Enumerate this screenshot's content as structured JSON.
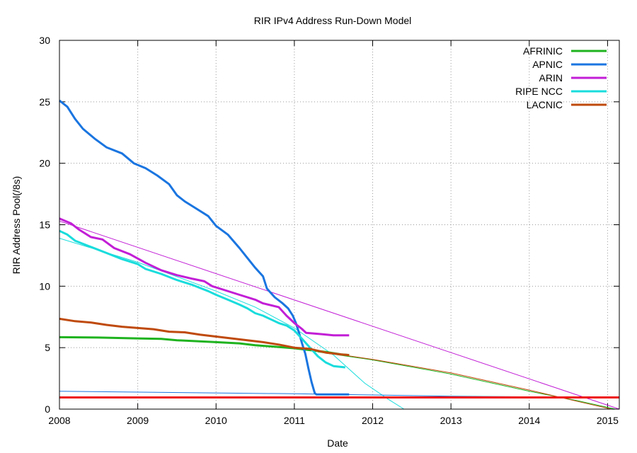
{
  "chart_data": {
    "type": "line",
    "title": "RIR IPv4 Address Run-Down Model",
    "xlabel": "Date",
    "ylabel": "RIR Address Pool(/8s)",
    "xlim": [
      2008,
      2015.15
    ],
    "ylim": [
      0,
      30
    ],
    "x_ticks": [
      "2008",
      "2009",
      "2010",
      "2011",
      "2012",
      "2013",
      "2014",
      "2015"
    ],
    "y_ticks": [
      "0",
      "5",
      "10",
      "15",
      "20",
      "25",
      "30"
    ],
    "grid": true,
    "legend_position": "top-right",
    "series": [
      {
        "name": "AFRINIC",
        "color": "#1fb31f",
        "points": [
          [
            2008.0,
            5.85
          ],
          [
            2008.5,
            5.82
          ],
          [
            2009.0,
            5.75
          ],
          [
            2009.3,
            5.72
          ],
          [
            2009.5,
            5.6
          ],
          [
            2010.0,
            5.45
          ],
          [
            2010.3,
            5.35
          ],
          [
            2010.5,
            5.2
          ],
          [
            2010.8,
            5.05
          ],
          [
            2011.0,
            4.95
          ],
          [
            2011.2,
            4.8
          ],
          [
            2011.4,
            4.65
          ],
          [
            2011.6,
            4.45
          ],
          [
            2011.7,
            4.4
          ]
        ]
      },
      {
        "name": "APNIC",
        "color": "#1a75e0",
        "points": [
          [
            2008.0,
            25.1
          ],
          [
            2008.1,
            24.6
          ],
          [
            2008.2,
            23.6
          ],
          [
            2008.3,
            22.8
          ],
          [
            2008.45,
            22.0
          ],
          [
            2008.6,
            21.3
          ],
          [
            2008.8,
            20.8
          ],
          [
            2008.95,
            20.0
          ],
          [
            2009.1,
            19.6
          ],
          [
            2009.25,
            19.0
          ],
          [
            2009.4,
            18.3
          ],
          [
            2009.5,
            17.4
          ],
          [
            2009.6,
            16.9
          ],
          [
            2009.75,
            16.3
          ],
          [
            2009.9,
            15.7
          ],
          [
            2010.0,
            14.9
          ],
          [
            2010.15,
            14.2
          ],
          [
            2010.3,
            13.1
          ],
          [
            2010.4,
            12.3
          ],
          [
            2010.5,
            11.5
          ],
          [
            2010.6,
            10.8
          ],
          [
            2010.65,
            9.8
          ],
          [
            2010.75,
            9.1
          ],
          [
            2010.85,
            8.6
          ],
          [
            2010.92,
            8.2
          ],
          [
            2010.98,
            7.6
          ],
          [
            2011.02,
            7.0
          ],
          [
            2011.06,
            6.2
          ],
          [
            2011.1,
            5.3
          ],
          [
            2011.14,
            4.5
          ],
          [
            2011.18,
            3.3
          ],
          [
            2011.22,
            2.2
          ],
          [
            2011.26,
            1.3
          ],
          [
            2011.28,
            1.2
          ],
          [
            2011.7,
            1.2
          ]
        ]
      },
      {
        "name": "ARIN",
        "color": "#c21ed6",
        "points": [
          [
            2008.0,
            15.5
          ],
          [
            2008.15,
            15.1
          ],
          [
            2008.25,
            14.6
          ],
          [
            2008.4,
            14.0
          ],
          [
            2008.55,
            13.8
          ],
          [
            2008.7,
            13.1
          ],
          [
            2008.9,
            12.6
          ],
          [
            2009.1,
            11.9
          ],
          [
            2009.3,
            11.3
          ],
          [
            2009.5,
            10.9
          ],
          [
            2009.7,
            10.6
          ],
          [
            2009.85,
            10.4
          ],
          [
            2009.95,
            10.0
          ],
          [
            2010.1,
            9.7
          ],
          [
            2010.3,
            9.3
          ],
          [
            2010.5,
            8.9
          ],
          [
            2010.6,
            8.6
          ],
          [
            2010.8,
            8.3
          ],
          [
            2010.9,
            7.6
          ],
          [
            2011.0,
            7.0
          ],
          [
            2011.1,
            6.5
          ],
          [
            2011.15,
            6.2
          ],
          [
            2011.35,
            6.1
          ],
          [
            2011.5,
            6.0
          ],
          [
            2011.7,
            6.0
          ]
        ]
      },
      {
        "name": "RIPE NCC",
        "color": "#19dcdc",
        "points": [
          [
            2008.0,
            14.5
          ],
          [
            2008.1,
            14.2
          ],
          [
            2008.2,
            13.7
          ],
          [
            2008.4,
            13.2
          ],
          [
            2008.6,
            12.7
          ],
          [
            2008.8,
            12.2
          ],
          [
            2009.0,
            11.8
          ],
          [
            2009.1,
            11.4
          ],
          [
            2009.3,
            11.0
          ],
          [
            2009.5,
            10.5
          ],
          [
            2009.7,
            10.1
          ],
          [
            2009.9,
            9.6
          ],
          [
            2010.0,
            9.3
          ],
          [
            2010.15,
            8.9
          ],
          [
            2010.3,
            8.5
          ],
          [
            2010.4,
            8.2
          ],
          [
            2010.5,
            7.8
          ],
          [
            2010.6,
            7.6
          ],
          [
            2010.7,
            7.3
          ],
          [
            2010.8,
            7.0
          ],
          [
            2010.9,
            6.8
          ],
          [
            2011.0,
            6.4
          ],
          [
            2011.1,
            5.7
          ],
          [
            2011.2,
            5.0
          ],
          [
            2011.3,
            4.3
          ],
          [
            2011.4,
            3.8
          ],
          [
            2011.5,
            3.5
          ],
          [
            2011.65,
            3.4
          ]
        ]
      },
      {
        "name": "LACNIC",
        "color": "#bf4a0d",
        "points": [
          [
            2008.0,
            7.35
          ],
          [
            2008.2,
            7.15
          ],
          [
            2008.4,
            7.05
          ],
          [
            2008.6,
            6.85
          ],
          [
            2008.8,
            6.7
          ],
          [
            2009.0,
            6.6
          ],
          [
            2009.2,
            6.5
          ],
          [
            2009.4,
            6.3
          ],
          [
            2009.6,
            6.25
          ],
          [
            2009.8,
            6.05
          ],
          [
            2010.0,
            5.9
          ],
          [
            2010.2,
            5.75
          ],
          [
            2010.4,
            5.6
          ],
          [
            2010.6,
            5.45
          ],
          [
            2010.8,
            5.25
          ],
          [
            2011.0,
            5.0
          ],
          [
            2011.2,
            4.9
          ],
          [
            2011.4,
            4.6
          ],
          [
            2011.6,
            4.45
          ],
          [
            2011.7,
            4.4
          ]
        ]
      },
      {
        "color": "#ee1111",
        "points": [
          [
            2008.0,
            0.95
          ],
          [
            2015.15,
            0.95
          ]
        ]
      }
    ],
    "model_lines": [
      {
        "color": "#c21ed6",
        "points": [
          [
            2008.0,
            15.3
          ],
          [
            2015.15,
            0.0
          ]
        ]
      },
      {
        "color": "#19dcdc",
        "points": [
          [
            2008.0,
            13.9
          ],
          [
            2009.0,
            11.95
          ],
          [
            2010.0,
            9.6
          ],
          [
            2010.5,
            8.3
          ],
          [
            2011.0,
            6.6
          ],
          [
            2011.5,
            4.4
          ],
          [
            2011.9,
            2.1
          ],
          [
            2012.2,
            0.8
          ],
          [
            2012.4,
            0.0
          ]
        ]
      },
      {
        "color": "#1a75e0",
        "points": [
          [
            2008.0,
            1.45
          ],
          [
            2011.0,
            1.25
          ],
          [
            2012.0,
            1.15
          ],
          [
            2013.0,
            1.05
          ],
          [
            2014.0,
            1.0
          ],
          [
            2015.15,
            0.95
          ]
        ]
      },
      {
        "color": "#1fb31f",
        "points": [
          [
            2011.3,
            4.65
          ],
          [
            2012.0,
            4.0
          ],
          [
            2013.0,
            2.85
          ],
          [
            2014.0,
            1.45
          ],
          [
            2014.6,
            0.7
          ],
          [
            2015.1,
            0.0
          ]
        ]
      },
      {
        "color": "#bf4a0d",
        "points": [
          [
            2011.3,
            4.7
          ],
          [
            2012.0,
            4.05
          ],
          [
            2013.0,
            2.95
          ],
          [
            2014.0,
            1.55
          ],
          [
            2014.6,
            0.65
          ],
          [
            2015.05,
            0.0
          ]
        ]
      }
    ]
  }
}
